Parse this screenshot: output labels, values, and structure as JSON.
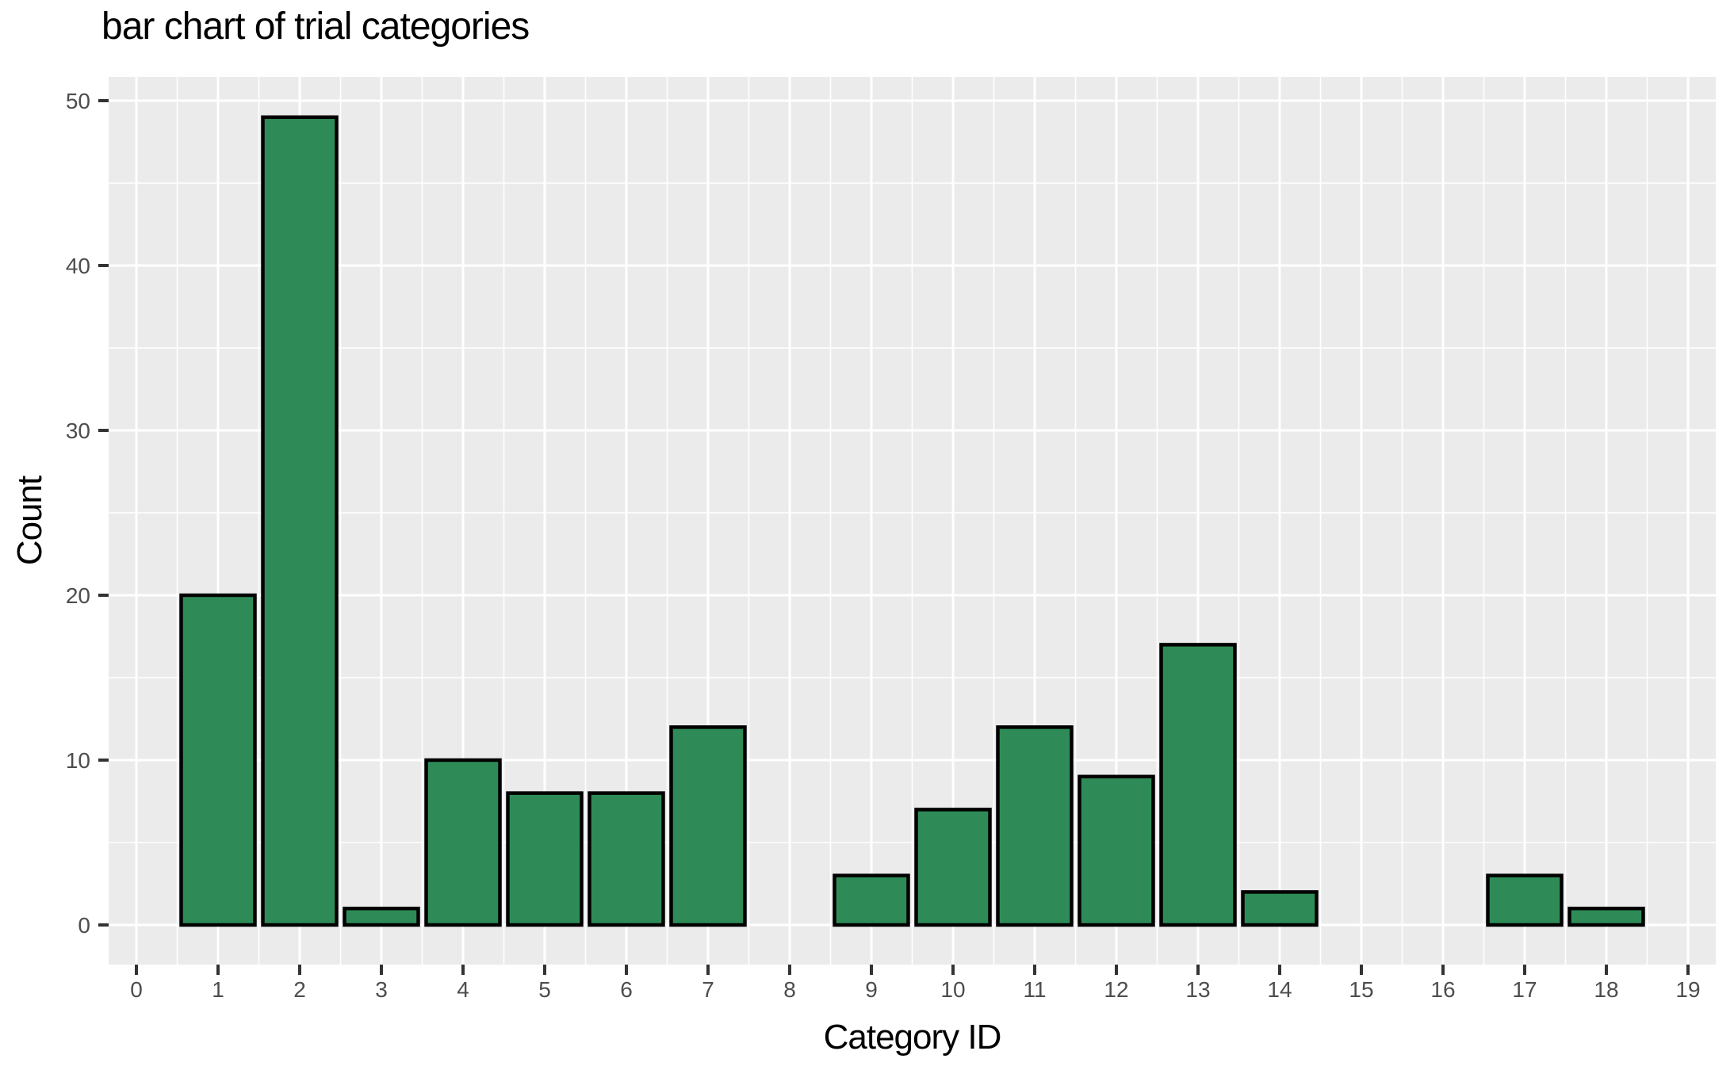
{
  "chart_data": {
    "type": "bar",
    "title": "bar chart of trial categories",
    "xlabel": "Category ID",
    "ylabel": "Count",
    "categories": [
      0,
      1,
      2,
      3,
      4,
      5,
      6,
      7,
      8,
      9,
      10,
      11,
      12,
      13,
      14,
      15,
      16,
      17,
      18,
      19
    ],
    "values": [
      0,
      20,
      49,
      1,
      10,
      8,
      8,
      12,
      0,
      3,
      7,
      12,
      9,
      17,
      2,
      0,
      0,
      3,
      1,
      0
    ],
    "x_ticks": [
      0,
      1,
      2,
      3,
      4,
      5,
      6,
      7,
      8,
      9,
      10,
      11,
      12,
      13,
      14,
      15,
      16,
      17,
      18,
      19
    ],
    "y_ticks": [
      0,
      10,
      20,
      30,
      40,
      50
    ],
    "y_minor_ticks": [
      5,
      15,
      25,
      35,
      45
    ],
    "xlim": [
      -0.34,
      19.34
    ],
    "ylim": [
      0,
      50
    ],
    "grid": "on",
    "legend": "none",
    "colors": {
      "bar_fill": "#2e8b57",
      "bar_edge": "#000000",
      "panel_bg": "#ebebeb",
      "grid_line": "#ffffff",
      "tick_label": "#4d4d4d",
      "tick_mark": "#333333",
      "title_text": "#000000"
    }
  }
}
